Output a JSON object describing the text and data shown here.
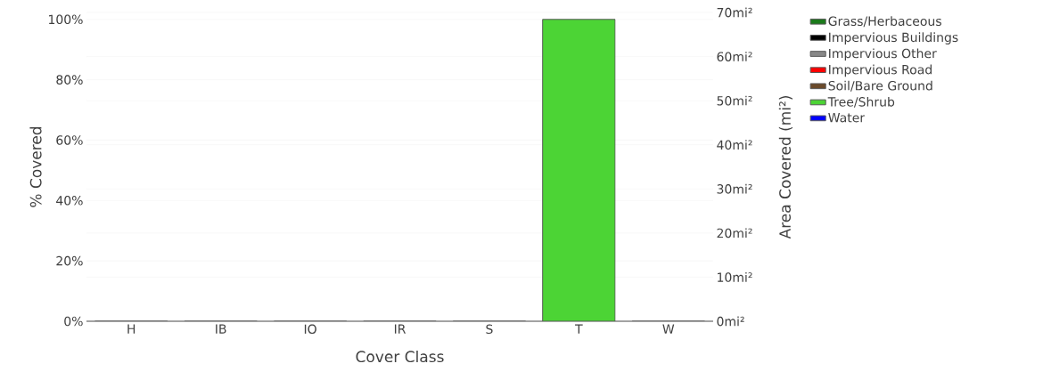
{
  "chart_data": {
    "type": "bar",
    "xlabel": "Cover Class",
    "ylabel": "% Covered",
    "y2label": "Area Covered (mi²)",
    "categories": [
      "H",
      "IB",
      "IO",
      "IR",
      "S",
      "T",
      "W"
    ],
    "series": [
      {
        "name": "Grass/Herbaceous",
        "color": "#1a7a1a",
        "values": [
          0,
          null,
          null,
          null,
          null,
          null,
          null
        ]
      },
      {
        "name": "Impervious Buildings",
        "color": "#000000",
        "values": [
          null,
          0,
          null,
          null,
          null,
          null,
          null
        ]
      },
      {
        "name": "Impervious Other",
        "color": "#888888",
        "values": [
          null,
          null,
          0,
          null,
          null,
          null,
          null
        ]
      },
      {
        "name": "Impervious Road",
        "color": "#ff0000",
        "values": [
          null,
          null,
          null,
          0,
          null,
          null,
          null
        ]
      },
      {
        "name": "Soil/Bare Ground",
        "color": "#6b4a2a",
        "values": [
          null,
          null,
          null,
          null,
          0,
          null,
          null
        ]
      },
      {
        "name": "Tree/Shrub",
        "color": "#4cd435",
        "values": [
          null,
          null,
          null,
          null,
          null,
          100,
          null
        ]
      },
      {
        "name": "Water",
        "color": "#0000ff",
        "values": [
          null,
          null,
          null,
          null,
          null,
          null,
          0
        ]
      }
    ],
    "ylim": [
      0,
      102.3
    ],
    "yticks": [
      {
        "value": 0,
        "label": "0%"
      },
      {
        "value": 20,
        "label": "20%"
      },
      {
        "value": 40,
        "label": "40%"
      },
      {
        "value": 60,
        "label": "60%"
      },
      {
        "value": 80,
        "label": "80%"
      },
      {
        "value": 100,
        "label": "100%"
      }
    ],
    "y2lim": [
      0,
      70
    ],
    "y2ticks": [
      {
        "value": 0,
        "label": "0mi²"
      },
      {
        "value": 10,
        "label": "10mi²"
      },
      {
        "value": 20,
        "label": "20mi²"
      },
      {
        "value": 30,
        "label": "30mi²"
      },
      {
        "value": 40,
        "label": "40mi²"
      },
      {
        "value": 50,
        "label": "50mi²"
      },
      {
        "value": 60,
        "label": "60mi²"
      },
      {
        "value": 70,
        "label": "70mi²"
      }
    ],
    "grid": "y",
    "legend": "top right"
  }
}
